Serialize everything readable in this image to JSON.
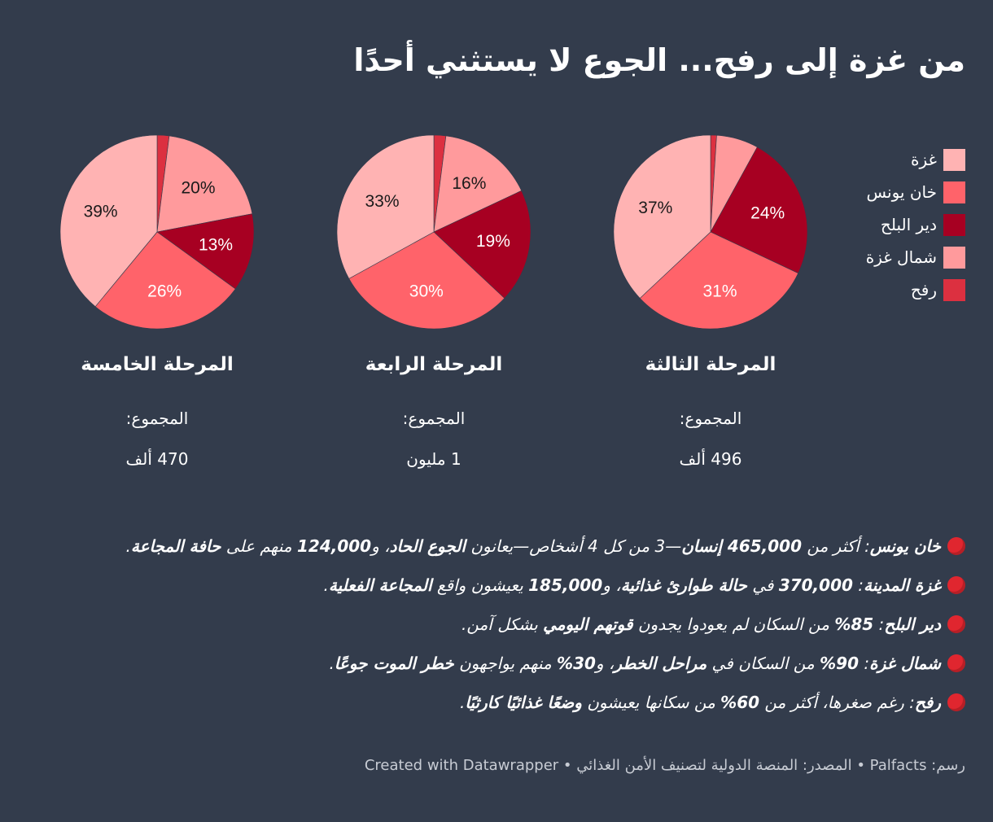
{
  "title": "من غزة إلى رفح... الجوع لا يستثني أحدًا",
  "legend": [
    {
      "label": "غزة",
      "color": "#ffb3b3"
    },
    {
      "label": "خان يونس",
      "color": "#ff636a"
    },
    {
      "label": "دير البلح",
      "color": "#a70022"
    },
    {
      "label": "شمال غزة",
      "color": "#ff9a9c"
    },
    {
      "label": "رفح",
      "color": "#dc3040"
    }
  ],
  "chart_data": [
    {
      "type": "pie",
      "title": "المرحلة الثالثة",
      "total_label": "المجموع:",
      "total_value": "496 ألف",
      "categories": [
        "رفح",
        "شمال غزة",
        "دير البلح",
        "خان يونس",
        "غزة"
      ],
      "values": [
        1,
        7,
        24,
        31,
        37
      ],
      "labels": [
        "",
        "",
        "24%",
        "31%",
        "37%"
      ]
    },
    {
      "type": "pie",
      "title": "المرحلة الرابعة",
      "total_label": "المجموع:",
      "total_value": "1 مليون",
      "categories": [
        "رفح",
        "شمال غزة",
        "دير البلح",
        "خان يونس",
        "غزة"
      ],
      "values": [
        2,
        16,
        19,
        30,
        33
      ],
      "labels": [
        "",
        "16%",
        "19%",
        "30%",
        "33%"
      ]
    },
    {
      "type": "pie",
      "title": "المرحلة الخامسة",
      "total_label": "المجموع:",
      "total_value": "470 ألف",
      "categories": [
        "رفح",
        "شمال غزة",
        "دير البلح",
        "خان يونس",
        "غزة"
      ],
      "values": [
        2,
        20,
        13,
        26,
        39
      ],
      "labels": [
        "",
        "20%",
        "13%",
        "26%",
        "39%"
      ]
    }
  ],
  "notes": [
    {
      "parts": [
        {
          "t": "خان يونس",
          "b": true
        },
        {
          "t": ": أكثر من "
        },
        {
          "t": "465,000 إنسان",
          "b": true
        },
        {
          "t": "—3 من كل 4 أشخاص—يعانون "
        },
        {
          "t": "الجوع الحاد",
          "b": true
        },
        {
          "t": "، و"
        },
        {
          "t": "124,000",
          "b": true
        },
        {
          "t": " منهم على "
        },
        {
          "t": "حافة المجاعة",
          "b": true
        },
        {
          "t": "."
        }
      ]
    },
    {
      "parts": [
        {
          "t": "غزة المدينة",
          "b": true
        },
        {
          "t": ": "
        },
        {
          "t": "370,000",
          "b": true
        },
        {
          "t": " في "
        },
        {
          "t": "حالة طوارئ غذائية",
          "b": true
        },
        {
          "t": "، و"
        },
        {
          "t": "185,000",
          "b": true
        },
        {
          "t": " يعيشون واقع "
        },
        {
          "t": "المجاعة الفعلية",
          "b": true
        },
        {
          "t": "."
        }
      ]
    },
    {
      "parts": [
        {
          "t": "دير البلح",
          "b": true
        },
        {
          "t": ": "
        },
        {
          "t": "85%",
          "b": true
        },
        {
          "t": " من السكان لم يعودوا يجدون "
        },
        {
          "t": "قوتهم اليومي",
          "b": true
        },
        {
          "t": " بشكل آمن."
        }
      ]
    },
    {
      "parts": [
        {
          "t": "شمال غزة",
          "b": true
        },
        {
          "t": ": "
        },
        {
          "t": "90%",
          "b": true
        },
        {
          "t": " من السكان في "
        },
        {
          "t": "مراحل الخطر",
          "b": true
        },
        {
          "t": "، و"
        },
        {
          "t": "30%",
          "b": true
        },
        {
          "t": " منهم يواجهون "
        },
        {
          "t": "خطر الموت جوعًا",
          "b": true
        },
        {
          "t": "."
        }
      ]
    },
    {
      "parts": [
        {
          "t": "رفح",
          "b": true
        },
        {
          "t": ": رغم صغرها، أكثر من "
        },
        {
          "t": "60%",
          "b": true
        },
        {
          "t": " من سكانها يعيشون "
        },
        {
          "t": "وضعًا غذائيًا كارثيًا",
          "b": true
        },
        {
          "t": "."
        }
      ]
    }
  ],
  "footer": "رسم: Palfacts • المصدر: المنصة الدولية لتصنيف الأمن الغذائي  • Created with Datawrapper"
}
